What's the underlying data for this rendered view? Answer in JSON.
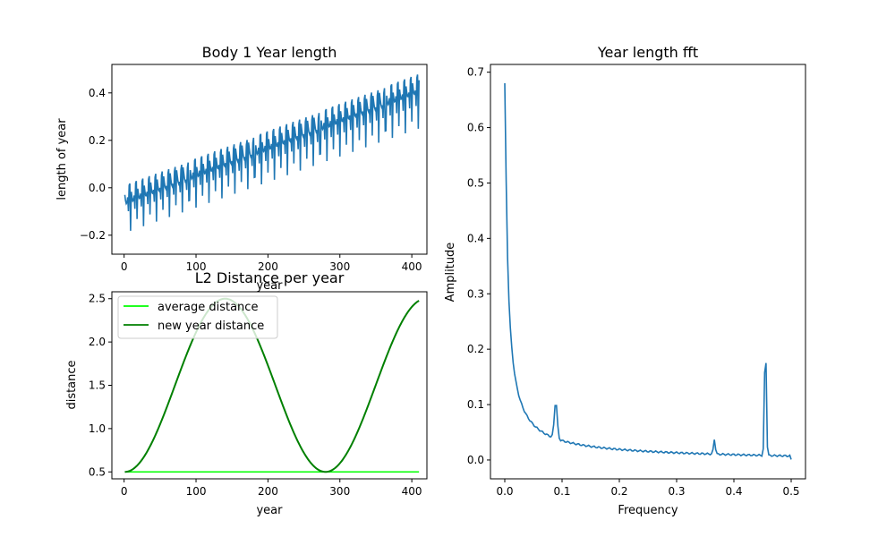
{
  "chart_data": [
    {
      "id": "year_length",
      "type": "line",
      "title": "Body 1 Year length",
      "xlabel": "year",
      "ylabel": "length of year",
      "xlim": [
        -17,
        421
      ],
      "ylim": [
        -0.28,
        0.52
      ],
      "xticks": [
        0,
        100,
        200,
        300,
        400
      ],
      "yticks": [
        -0.2,
        0.0,
        0.2,
        0.4
      ],
      "ytick_labels": [
        "−0.2",
        "0.0",
        "0.2",
        "0.4"
      ],
      "color": "#1f77b4",
      "series": [
        {
          "values": {
            "generator": "sawtooth_drift",
            "n_points": 410,
            "x_start": 1,
            "x_end": 410,
            "trend_start": 0.0,
            "trend_end": 0.47,
            "period_years": 9.1,
            "dip_start": -0.19,
            "dip_end": 0.25,
            "secondary_dip_fraction": 0.55
          }
        }
      ]
    },
    {
      "id": "l2_distance",
      "type": "line",
      "title": "L2 Distance per year",
      "xlabel": "year",
      "ylabel": "distance",
      "xlim": [
        -17,
        421
      ],
      "ylim": [
        0.42,
        2.58
      ],
      "xticks": [
        0,
        100,
        200,
        300,
        400
      ],
      "yticks": [
        0.5,
        1.0,
        1.5,
        2.0,
        2.5
      ],
      "legend": "upper left",
      "series": [
        {
          "name": "average distance",
          "color": "#00ff00",
          "points": [
            [
              1,
              0.5
            ],
            [
              410,
              0.5
            ]
          ],
          "hidden_behind": true
        },
        {
          "name": "new year distance",
          "color": "#008000",
          "values": {
            "generator": "cosine",
            "x_start": 1,
            "x_end": 410,
            "center": 1.5,
            "amplitude": 1.0,
            "period_years": 279,
            "phase_min_at": 1
          }
        }
      ]
    },
    {
      "id": "fft",
      "type": "line",
      "title": "Year length fft",
      "xlabel": "Frequency",
      "ylabel": "Amplitude",
      "xlim": [
        -0.025,
        0.525
      ],
      "ylim": [
        -0.034,
        0.714
      ],
      "xticks": [
        0.0,
        0.1,
        0.2,
        0.3,
        0.4,
        0.5
      ],
      "yticks": [
        0.0,
        0.1,
        0.2,
        0.3,
        0.4,
        0.5,
        0.6,
        0.7
      ],
      "color": "#1f77b4",
      "series": [
        {
          "values": {
            "generator": "spectrum",
            "x_start": 0.0,
            "x_end": 0.5,
            "dc_peak": 0.68,
            "peaks": [
              {
                "freq": 0.089,
                "amp": 0.068
              },
              {
                "freq": 0.366,
                "amp": 0.027
              },
              {
                "freq": 0.455,
                "amp": 0.215
              }
            ],
            "floor": 0.005
          }
        }
      ]
    }
  ]
}
